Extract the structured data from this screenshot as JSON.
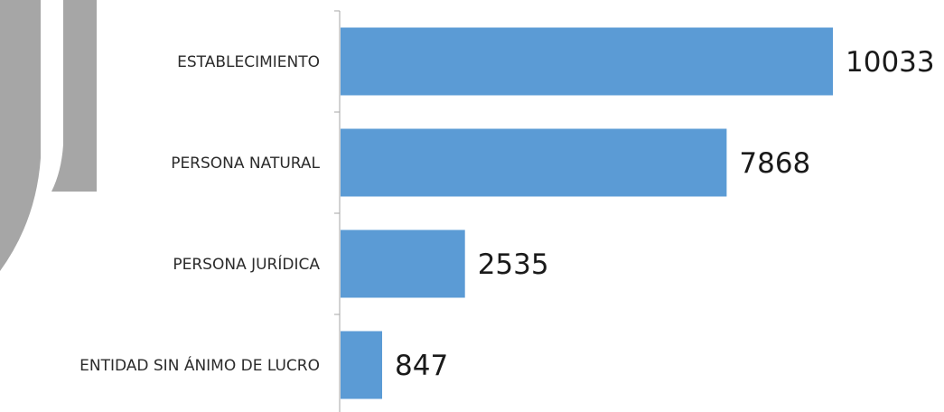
{
  "colors": {
    "bar": "#5b9bd5",
    "axis": "#a6a6a6",
    "decor": "#a6a6a6",
    "text": "#2b2b2b"
  },
  "chart_data": {
    "type": "bar",
    "orientation": "horizontal",
    "categories": [
      "ESTABLECIMIENTO",
      "PERSONA NATURAL",
      "PERSONA JURÍDICA",
      "ENTIDAD SIN ÁNIMO DE LUCRO"
    ],
    "values": [
      10033,
      7868,
      2535,
      847
    ],
    "data_labels": [
      "10033",
      "7868",
      "2535",
      "847"
    ],
    "title": "",
    "xlabel": "",
    "ylabel": "",
    "xlim": [
      0,
      10033
    ],
    "grid": false,
    "legend": "none"
  }
}
